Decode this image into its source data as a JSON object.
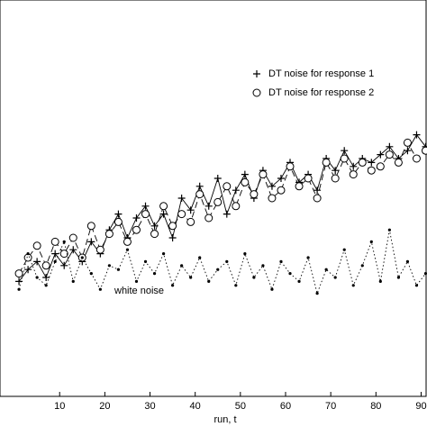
{
  "chart_data": {
    "type": "line",
    "x_label": "run, t",
    "annotation": "white noise",
    "x": [
      1,
      3,
      5,
      7,
      9,
      11,
      13,
      15,
      17,
      19,
      21,
      23,
      25,
      27,
      29,
      31,
      33,
      35,
      37,
      39,
      41,
      43,
      45,
      47,
      49,
      51,
      53,
      55,
      57,
      59,
      61,
      63,
      65,
      67,
      69,
      71,
      73,
      75,
      77,
      79,
      81,
      83,
      85,
      87,
      89,
      91
    ],
    "series": [
      {
        "name": "DT noise for response 1",
        "color": "#000000",
        "marker": "plus",
        "line": "solid",
        "values": [
          2.9,
          3.2,
          3.4,
          3.0,
          3.6,
          3.3,
          3.7,
          3.4,
          3.9,
          3.6,
          4.2,
          4.6,
          4.0,
          4.5,
          4.8,
          4.3,
          4.6,
          4.0,
          5.0,
          4.7,
          5.3,
          4.8,
          5.5,
          4.6,
          5.2,
          5.6,
          5.0,
          5.7,
          5.3,
          5.5,
          5.9,
          5.4,
          5.6,
          5.2,
          6.0,
          5.7,
          6.2,
          5.8,
          6.0,
          5.9,
          6.1,
          6.3,
          6.0,
          6.2,
          6.6,
          6.3
        ]
      },
      {
        "name": "DT noise for response 2",
        "color": "#000000",
        "marker": "circle",
        "line": "dashed",
        "values": [
          3.1,
          3.5,
          3.8,
          3.3,
          3.9,
          3.6,
          4.0,
          3.5,
          4.3,
          3.7,
          4.1,
          4.4,
          3.9,
          4.2,
          4.6,
          4.1,
          4.8,
          4.3,
          4.6,
          4.4,
          5.1,
          4.5,
          4.9,
          5.3,
          4.8,
          5.4,
          5.1,
          5.6,
          5.0,
          5.2,
          5.8,
          5.3,
          5.5,
          5.0,
          5.9,
          5.5,
          6.0,
          5.6,
          5.9,
          5.7,
          5.8,
          6.1,
          5.9,
          6.4,
          6.0,
          6.2
        ]
      },
      {
        "name": "white noise",
        "color": "#000000",
        "marker": "dot",
        "line": "dotted",
        "values": [
          2.7,
          3.6,
          3.0,
          2.8,
          3.4,
          3.9,
          2.9,
          3.5,
          3.1,
          2.7,
          3.3,
          3.2,
          3.7,
          2.9,
          3.4,
          3.1,
          3.6,
          2.8,
          3.3,
          3.0,
          3.5,
          2.9,
          3.2,
          3.4,
          2.8,
          3.6,
          3.0,
          3.3,
          2.7,
          3.4,
          3.1,
          2.9,
          3.5,
          2.6,
          3.2,
          3.0,
          3.7,
          2.8,
          3.3,
          3.9,
          2.9,
          4.2,
          3.0,
          3.4,
          2.8,
          3.1
        ]
      }
    ],
    "xlim": [
      -3.2,
      91.3
    ],
    "xticks": [
      10,
      20,
      30,
      40,
      50,
      60,
      70,
      80,
      90
    ],
    "ylim": [
      0,
      10
    ]
  }
}
